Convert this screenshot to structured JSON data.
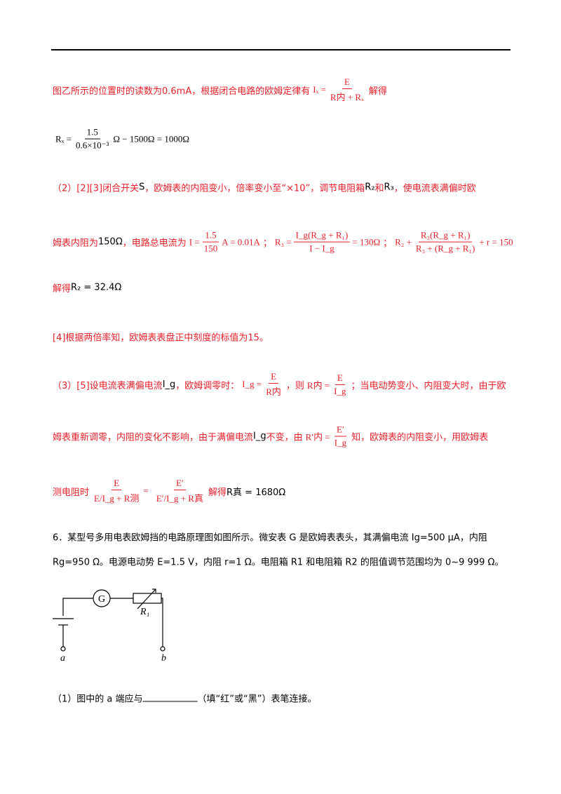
{
  "lines": [
    {
      "color": "#e8202a",
      "segs": [
        {
          "t": "图乙所示的位置时的读数为0.6mA，根据闭合电路的欧姆定律有"
        },
        {
          "f": {
            "l": "Iₓ =",
            "n": "E",
            "d": "R内 + Rₓ"
          }
        },
        {
          "t": "解得"
        }
      ]
    },
    {
      "color": "#000000",
      "segs": [
        {
          "f": {
            "l": "Rₓ =",
            "n": "1.5",
            "d": "0.6×10⁻³",
            "r": "Ω − 1500Ω = 1000Ω"
          }
        }
      ]
    },
    {
      "color": "#e8202a",
      "segs": [
        {
          "t": "（2）[2][3]闭合开关"
        },
        {
          "t": "S",
          "color": "#000000"
        },
        {
          "t": "，欧姆表的内阻变小，倍率变小至“×10”，调节电阻箱"
        },
        {
          "t": "R₂",
          "color": "#000000"
        },
        {
          "t": "和"
        },
        {
          "t": "R₃",
          "color": "#000000"
        },
        {
          "t": "，使电流表满偏时欧"
        }
      ]
    },
    {
      "color": "#e8202a",
      "segs": [
        {
          "t": "姆表内阻为"
        },
        {
          "t": "150Ω",
          "color": "#000000"
        },
        {
          "t": "，电路总电流为"
        },
        {
          "f": {
            "l": "I =",
            "n": "1.5",
            "d": "150",
            "r": "A = 0.01A"
          }
        },
        {
          "t": "；"
        },
        {
          "f": {
            "l": "R₃ =",
            "n": "I_g(R_g + R₁)",
            "d": "I − I_g",
            "r": "= 130Ω"
          }
        },
        {
          "t": "；"
        },
        {
          "f": {
            "l": "R₂ +",
            "n": "R₃(R_g + R₁)",
            "d": "R₃ + (R_g + R₁)",
            "r": "+ r = 150"
          }
        }
      ]
    },
    {
      "color": "#e8202a",
      "segs": [
        {
          "t": "解得"
        },
        {
          "t": "R₂ = 32.4Ω",
          "color": "#000000"
        }
      ]
    },
    {
      "color": "#e8202a",
      "segs": [
        {
          "t": "[4]根据两倍率知，欧姆表表盘正中刻度的标值为15。"
        }
      ]
    },
    {
      "color": "#e8202a",
      "segs": [
        {
          "t": "（3）[5]设电流表满偏电流"
        },
        {
          "t": "I_g",
          "color": "#000000"
        },
        {
          "t": "，欧姆调零时："
        },
        {
          "f": {
            "l": "I_g =",
            "n": "E",
            "d": "R内"
          }
        },
        {
          "t": "，则"
        },
        {
          "f": {
            "l": "R内 =",
            "n": "E",
            "d": "I_g"
          }
        },
        {
          "t": "；当电动势变小、内阻变大时，由于欧"
        }
      ]
    },
    {
      "color": "#e8202a",
      "segs": [
        {
          "t": "姆表重新调零，内阻的变化不影响，由于满偏电流"
        },
        {
          "t": "I_g",
          "color": "#000000"
        },
        {
          "t": "不变，由"
        },
        {
          "f": {
            "l": "R′内 =",
            "n": "E′",
            "d": "I_g"
          }
        },
        {
          "t": "知，欧姆表的内阻变小，用欧姆表"
        }
      ]
    },
    {
      "color": "#e8202a",
      "segs": [
        {
          "t": "测电阻时"
        },
        {
          "f": {
            "n": "E",
            "d": "E/I_g + R测",
            "r": "="
          }
        },
        {
          "f": {
            "n": "E′",
            "d": "E′/I_g + R真"
          }
        },
        {
          "t": "解得"
        },
        {
          "t": "R真 = 1680Ω",
          "color": "#000000"
        }
      ]
    },
    {
      "color": "#000000",
      "segs": [
        {
          "t": "6．某型号多用电表欧姆挡的电路原理图如图所示。微安表 G 是欧姆表表头，其满偏电流 Ig=500 μA，内阻"
        }
      ]
    },
    {
      "color": "#000000",
      "segs": [
        {
          "t": "Rg=950 Ω。电源电动势 E=1.5 V，内阻 r=1 Ω。电阻箱 R1 和电阻箱 R2 的阻值调节范围均为 0~9 999 Ω。"
        }
      ]
    },
    {
      "color": "#000000",
      "segs": [
        {
          "t": "（1）图中的 a 端应与"
        },
        {
          "blank": "____________"
        },
        {
          "t": "（填“红”或“黑”）表笔连接。"
        }
      ]
    }
  ],
  "diagram": {
    "g": "G",
    "r1": "R₁",
    "a": "a",
    "b": "b"
  }
}
